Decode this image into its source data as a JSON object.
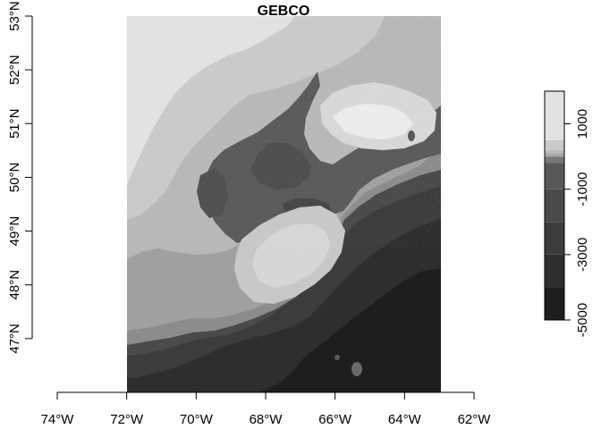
{
  "chart_data": {
    "type": "heatmap",
    "title": "GEBCO",
    "x_ticks": [
      "74°W",
      "72°W",
      "70°W",
      "68°W",
      "66°W",
      "64°W",
      "62°W"
    ],
    "y_ticks": [
      "47°N",
      "48°N",
      "49°N",
      "50°N",
      "51°N",
      "52°N",
      "53°N"
    ],
    "xlim": [
      -74,
      -62
    ],
    "ylim": [
      46,
      53
    ],
    "data_extent": {
      "lon": [
        -72,
        -63
      ],
      "lat": [
        46,
        53
      ]
    },
    "colorbar": {
      "ticks": [
        "1000",
        "-1000",
        "-3000",
        "-5000"
      ],
      "tick_values": [
        1000,
        -1000,
        -3000,
        -5000
      ],
      "range": [
        -5000,
        2000
      ],
      "bands": [
        {
          "from": -5000,
          "to": -4000,
          "color": "#1e1e1e"
        },
        {
          "from": -4000,
          "to": -3000,
          "color": "#2e2e2e"
        },
        {
          "from": -3000,
          "to": -2000,
          "color": "#3c3c3c"
        },
        {
          "from": -2000,
          "to": -1000,
          "color": "#4a4a4a"
        },
        {
          "from": -1000,
          "to": -200,
          "color": "#585858"
        },
        {
          "from": -200,
          "to": 0,
          "color": "#777777"
        },
        {
          "from": 0,
          "to": 100,
          "color": "#a8a8a8"
        },
        {
          "from": 100,
          "to": 200,
          "color": "#bababa"
        },
        {
          "from": 200,
          "to": 500,
          "color": "#cacaca"
        },
        {
          "from": 500,
          "to": 2000,
          "color": "#e2e2e2"
        }
      ]
    }
  }
}
